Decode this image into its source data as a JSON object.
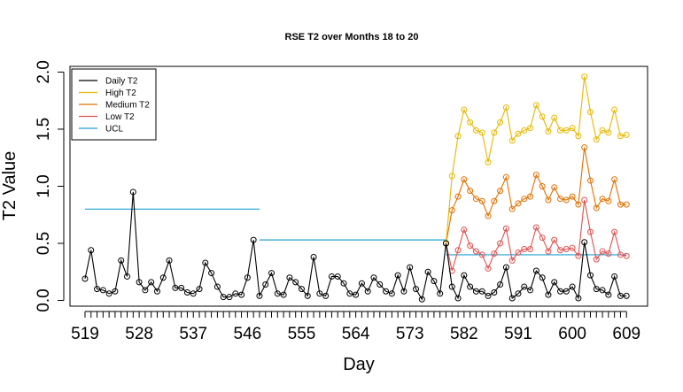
{
  "chart_data": {
    "type": "line",
    "title": "RSE T2 over Months 18 to 20",
    "xlabel": "Day",
    "ylabel": "T2 Value",
    "xlim": [
      516.5,
      612.5
    ],
    "ylim": [
      -0.05,
      2.05
    ],
    "x_ticks": [
      "519",
      "528",
      "537",
      "546",
      "555",
      "564",
      "573",
      "582",
      "591",
      "600",
      "609"
    ],
    "y_ticks": [
      "0.0",
      "0.5",
      "1.0",
      "1.5",
      "2.0"
    ],
    "legend": {
      "position": "top-left"
    },
    "series": [
      {
        "name": "Daily T2",
        "color": "#000000",
        "x_start": 519,
        "values": [
          0.19,
          0.44,
          0.1,
          0.09,
          0.06,
          0.08,
          0.35,
          0.21,
          0.95,
          0.16,
          0.09,
          0.16,
          0.08,
          0.2,
          0.35,
          0.11,
          0.11,
          0.07,
          0.06,
          0.1,
          0.33,
          0.24,
          0.12,
          0.03,
          0.03,
          0.06,
          0.05,
          0.2,
          0.53,
          0.04,
          0.14,
          0.24,
          0.06,
          0.05,
          0.2,
          0.16,
          0.1,
          0.04,
          0.38,
          0.06,
          0.04,
          0.21,
          0.21,
          0.15,
          0.06,
          0.05,
          0.15,
          0.08,
          0.2,
          0.14,
          0.08,
          0.06,
          0.22,
          0.08,
          0.29,
          0.1,
          0.01,
          0.25,
          0.17,
          0.06,
          0.5,
          0.12,
          0.02,
          0.22,
          0.12,
          0.08,
          0.08,
          0.04,
          0.07,
          0.14,
          0.29,
          0.02,
          0.06,
          0.12,
          0.09,
          0.26,
          0.2,
          0.05,
          0.16,
          0.08,
          0.08,
          0.12,
          0.02,
          0.51,
          0.22,
          0.1,
          0.09,
          0.05,
          0.21,
          0.04,
          0.04
        ]
      },
      {
        "name": "High T2",
        "color": "#e6b800",
        "x_start": 579,
        "values": [
          0.5,
          1.09,
          1.44,
          1.67,
          1.56,
          1.49,
          1.47,
          1.21,
          1.47,
          1.56,
          1.69,
          1.4,
          1.46,
          1.49,
          1.51,
          1.71,
          1.61,
          1.48,
          1.6,
          1.49,
          1.49,
          1.51,
          1.44,
          1.96,
          1.65,
          1.41,
          1.49,
          1.47,
          1.67,
          1.44,
          1.45
        ]
      },
      {
        "name": "Medium T2",
        "color": "#e07000",
        "x_start": 579,
        "values": [
          0.5,
          0.79,
          0.91,
          1.06,
          0.96,
          0.89,
          0.87,
          0.74,
          0.87,
          0.96,
          1.08,
          0.8,
          0.85,
          0.89,
          0.91,
          1.1,
          1.0,
          0.88,
          0.99,
          0.89,
          0.88,
          0.91,
          0.84,
          1.34,
          1.05,
          0.81,
          0.89,
          0.87,
          1.06,
          0.84,
          0.84
        ]
      },
      {
        "name": "Low T2",
        "color": "#e05050",
        "x_start": 579,
        "values": [
          0.5,
          0.26,
          0.44,
          0.62,
          0.48,
          0.43,
          0.4,
          0.28,
          0.41,
          0.5,
          0.63,
          0.35,
          0.42,
          0.45,
          0.45,
          0.64,
          0.55,
          0.43,
          0.53,
          0.44,
          0.45,
          0.46,
          0.39,
          0.88,
          0.6,
          0.36,
          0.43,
          0.41,
          0.6,
          0.4,
          0.39
        ]
      },
      {
        "name": "UCL",
        "color": "#1fa0d0",
        "segments": [
          {
            "x": [
              519,
              548
            ],
            "y": [
              0.8,
              0.8
            ]
          },
          {
            "x": [
              548,
              579
            ],
            "y": [
              0.53,
              0.53
            ]
          },
          {
            "x": [
              579,
              609
            ],
            "y": [
              0.4,
              0.4
            ]
          }
        ]
      }
    ]
  }
}
